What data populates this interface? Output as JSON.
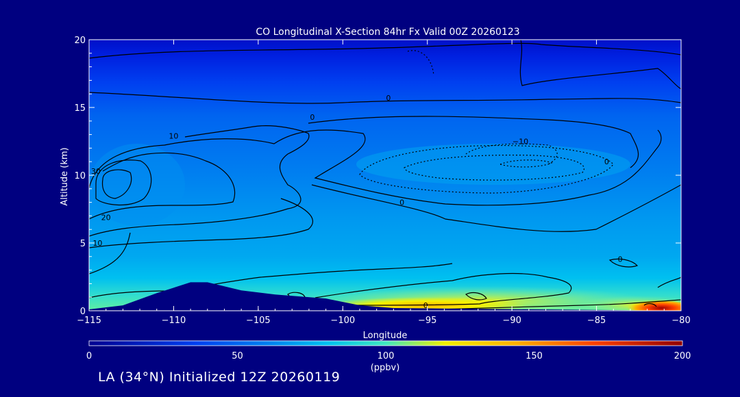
{
  "chart_data": {
    "type": "heatmap",
    "title": "CO Longitudinal X-Section 84hr  Fx Valid 00Z 20260123",
    "xlabel": "Longitude",
    "ylabel": "Altitude (km)",
    "xlim": [
      -115,
      -80
    ],
    "ylim": [
      0,
      20
    ],
    "x_ticks": [
      "-115",
      "-110",
      "-105",
      "-100",
      "-95",
      "-90",
      "-85",
      "-80"
    ],
    "y_ticks": [
      "0",
      "5",
      "10",
      "15",
      "20"
    ],
    "colorbar": {
      "range": [
        0,
        200
      ],
      "ticks": [
        "0",
        "50",
        "100",
        "150",
        "200"
      ],
      "units": "(ppbv)",
      "colors": [
        "#000090",
        "#0050f0",
        "#00b4f0",
        "#30e0c0",
        "#f8f000",
        "#ff8c00",
        "#e01000",
        "#900000"
      ]
    },
    "contour_labels": [
      {
        "text": "0",
        "lon": -97.3,
        "alt": 15.5
      },
      {
        "text": "0",
        "lon": -101.8,
        "alt": 14.1
      },
      {
        "text": "10",
        "lon": -110.0,
        "alt": 12.7
      },
      {
        "text": "-10",
        "lon": -89.5,
        "alt": 12.3
      },
      {
        "text": "30",
        "lon": -114.6,
        "alt": 10.1
      },
      {
        "text": "0",
        "lon": -84.4,
        "alt": 10.8
      },
      {
        "text": "0",
        "lon": -96.5,
        "alt": 7.8
      },
      {
        "text": "20",
        "lon": -114.0,
        "alt": 6.7
      },
      {
        "text": "10",
        "lon": -114.5,
        "alt": 4.8
      },
      {
        "text": "0",
        "lon": -83.6,
        "alt": 3.6
      },
      {
        "text": "0",
        "lon": -95.1,
        "alt": 0.2
      }
    ],
    "terrain_alt_km": [
      [
        -115,
        0.1
      ],
      [
        -113,
        0.4
      ],
      [
        -111,
        1.3
      ],
      [
        -109,
        2.1
      ],
      [
        -108,
        2.1
      ],
      [
        -106,
        1.5
      ],
      [
        -104,
        1.2
      ],
      [
        -101,
        0.9
      ],
      [
        -99,
        0.4
      ],
      [
        -97,
        0.2
      ],
      [
        -80,
        0.0
      ]
    ]
  },
  "footer": "LA (34°N) Initialized 12Z 20260119"
}
